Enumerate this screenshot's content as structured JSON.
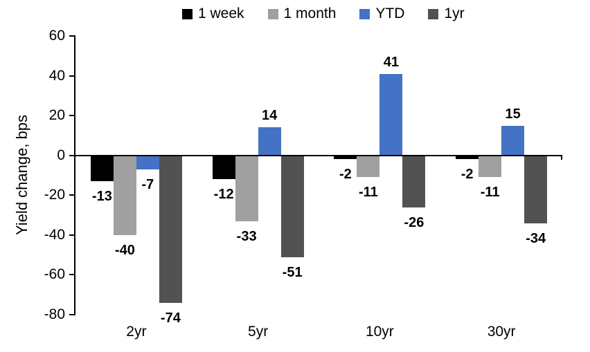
{
  "chart_data": {
    "type": "bar",
    "title": "",
    "xlabel": "",
    "ylabel": "Yield change, bps",
    "categories": [
      "2yr",
      "5yr",
      "10yr",
      "30yr"
    ],
    "series": [
      {
        "name": "1 week",
        "color": "#000000",
        "values": [
          -13,
          -12,
          -2,
          -2
        ]
      },
      {
        "name": "1 month",
        "color": "#A0A0A0",
        "values": [
          -40,
          -33,
          -11,
          -11
        ]
      },
      {
        "name": "YTD",
        "color": "#4472C4",
        "values": [
          -7,
          14,
          41,
          15
        ]
      },
      {
        "name": "1yr",
        "color": "#525252",
        "values": [
          -74,
          -51,
          -26,
          -34
        ]
      }
    ],
    "ylim": [
      -80,
      60
    ],
    "ytick_step": 20,
    "yticks": [
      60,
      40,
      20,
      0,
      -20,
      -40,
      -60,
      -80
    ],
    "grid": false,
    "legend_position": "top",
    "data_labels": "outside-end",
    "axis_color": "#000000",
    "background": "#FFFFFF"
  }
}
